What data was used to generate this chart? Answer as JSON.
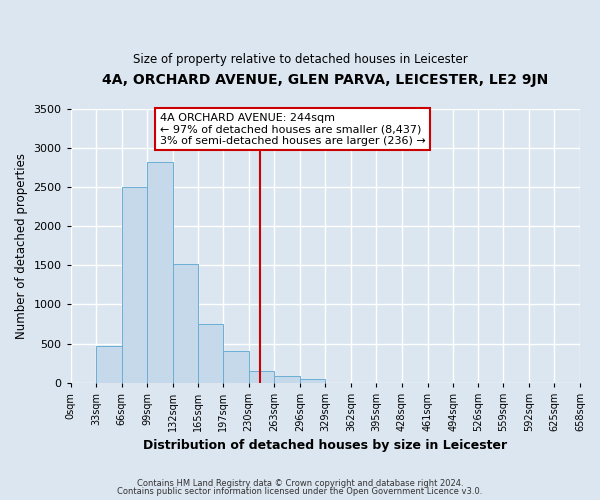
{
  "title": "4A, ORCHARD AVENUE, GLEN PARVA, LEICESTER, LE2 9JN",
  "subtitle": "Size of property relative to detached houses in Leicester",
  "xlabel": "Distribution of detached houses by size in Leicester",
  "ylabel": "Number of detached properties",
  "bar_color": "#c6d9ea",
  "bar_edge_color": "#6baed6",
  "background_color": "#dce6f0",
  "grid_color": "#ffffff",
  "annotation_box_color": "#cc0000",
  "vline_color": "#cc0000",
  "vline_x": 244,
  "annotation_title": "4A ORCHARD AVENUE: 244sqm",
  "annotation_line1": "← 97% of detached houses are smaller (8,437)",
  "annotation_line2": "3% of semi-detached houses are larger (236) →",
  "bin_edges": [
    0,
    33,
    66,
    99,
    132,
    165,
    197,
    230,
    263,
    296,
    329,
    362,
    395,
    428,
    461,
    494,
    526,
    559,
    592,
    625,
    658
  ],
  "bin_heights": [
    0,
    470,
    2500,
    2820,
    1510,
    750,
    400,
    155,
    85,
    50,
    0,
    0,
    0,
    0,
    0,
    0,
    0,
    0,
    0,
    0
  ],
  "tick_labels": [
    "0sqm",
    "33sqm",
    "66sqm",
    "99sqm",
    "132sqm",
    "165sqm",
    "197sqm",
    "230sqm",
    "263sqm",
    "296sqm",
    "329sqm",
    "362sqm",
    "395sqm",
    "428sqm",
    "461sqm",
    "494sqm",
    "526sqm",
    "559sqm",
    "592sqm",
    "625sqm",
    "658sqm"
  ],
  "ylim": [
    0,
    3500
  ],
  "yticks": [
    0,
    500,
    1000,
    1500,
    2000,
    2500,
    3000,
    3500
  ],
  "footer1": "Contains HM Land Registry data © Crown copyright and database right 2024.",
  "footer2": "Contains public sector information licensed under the Open Government Licence v3.0."
}
